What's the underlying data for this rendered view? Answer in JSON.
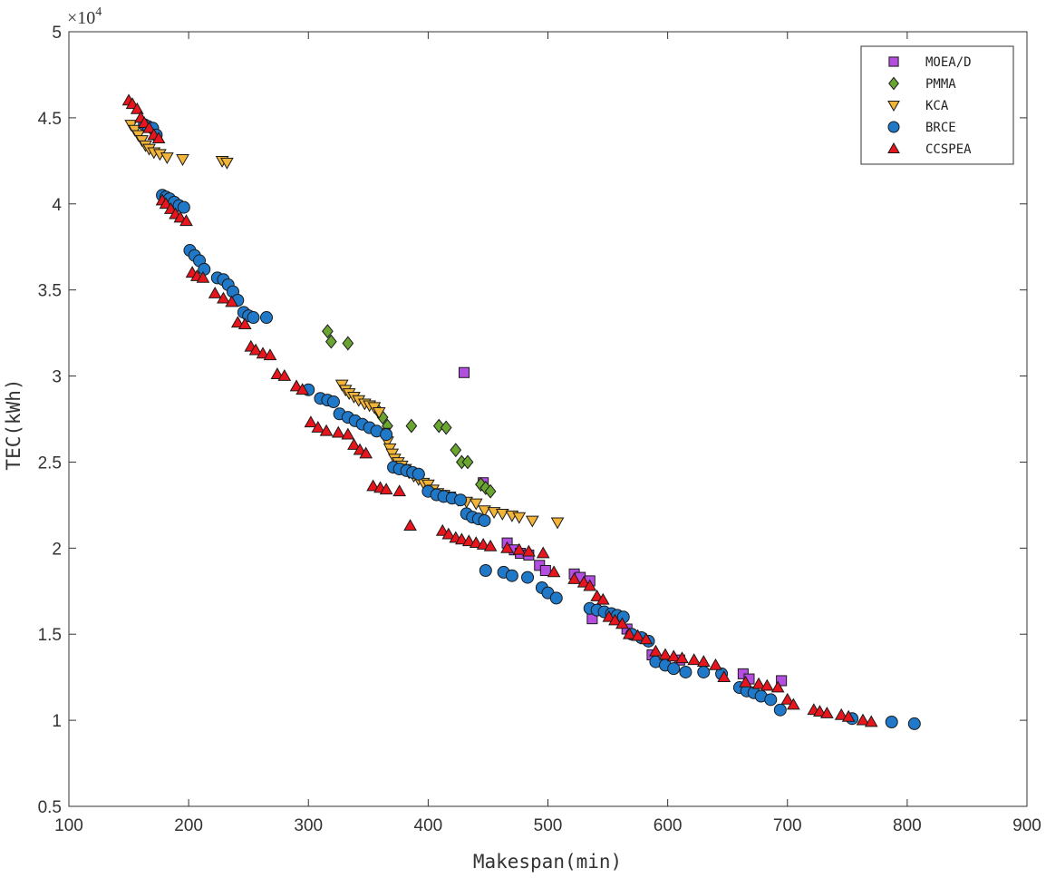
{
  "chart_data": {
    "type": "scatter",
    "title": "",
    "xlabel": "Makespan(min)",
    "ylabel": "TEC(kWh)",
    "xlim": [
      100,
      900
    ],
    "ylim": [
      0.5,
      5
    ],
    "y_multiplier_label": "×10",
    "y_multiplier_exponent": "4",
    "x_ticks": [
      100,
      200,
      300,
      400,
      500,
      600,
      700,
      800,
      900
    ],
    "x_tick_labels": [
      "100",
      "200",
      "300",
      "400",
      "500",
      "600",
      "700",
      "800",
      "900"
    ],
    "y_ticks": [
      0.5,
      1,
      1.5,
      2,
      2.5,
      3,
      3.5,
      4,
      4.5,
      5
    ],
    "y_tick_labels": [
      "0.5",
      "1",
      "1.5",
      "2",
      "2.5",
      "3",
      "3.5",
      "4",
      "4.5",
      "5"
    ],
    "grid": false,
    "legend_position": "top-right",
    "series": [
      {
        "name": "MOEA/D",
        "marker": "square",
        "color": "#b44ee0",
        "x": [
          430,
          446,
          466,
          472,
          477,
          484,
          493,
          498,
          522,
          527,
          535,
          537,
          566,
          587,
          610,
          663,
          668,
          695
        ],
        "y": [
          3.02,
          2.38,
          2.03,
          1.99,
          1.97,
          1.96,
          1.9,
          1.87,
          1.85,
          1.83,
          1.81,
          1.59,
          1.53,
          1.38,
          1.35,
          1.27,
          1.24,
          1.23
        ]
      },
      {
        "name": "PMMA",
        "marker": "diamond",
        "color": "#6aa532",
        "x": [
          316,
          319,
          333,
          358,
          362,
          366,
          386,
          409,
          415,
          423,
          428,
          433,
          444,
          448,
          452
        ],
        "y": [
          3.26,
          3.2,
          3.19,
          2.8,
          2.76,
          2.71,
          2.71,
          2.71,
          2.7,
          2.57,
          2.5,
          2.5,
          2.37,
          2.35,
          2.33
        ]
      },
      {
        "name": "KCA",
        "marker": "triangle-down",
        "color": "#f2b53a",
        "x": [
          152,
          155,
          158,
          161,
          164,
          167,
          171,
          176,
          182,
          195,
          228,
          232,
          328,
          331,
          334,
          338,
          342,
          347,
          351,
          355,
          359,
          363,
          366,
          368,
          370,
          372,
          375,
          378,
          381,
          384,
          388,
          392,
          396,
          400,
          404,
          408,
          413,
          418,
          425,
          432,
          440,
          447,
          455,
          462,
          470,
          476,
          487,
          508
        ],
        "y": [
          4.46,
          4.43,
          4.4,
          4.37,
          4.34,
          4.32,
          4.3,
          4.29,
          4.27,
          4.26,
          4.25,
          4.24,
          2.95,
          2.92,
          2.9,
          2.88,
          2.86,
          2.84,
          2.83,
          2.82,
          2.79,
          2.67,
          2.62,
          2.58,
          2.55,
          2.52,
          2.5,
          2.48,
          2.46,
          2.44,
          2.42,
          2.4,
          2.38,
          2.37,
          2.34,
          2.32,
          2.31,
          2.3,
          2.28,
          2.27,
          2.26,
          2.22,
          2.21,
          2.2,
          2.19,
          2.18,
          2.16,
          2.15
        ]
      },
      {
        "name": "BRCE",
        "marker": "circle",
        "color": "#1f78c8",
        "x": [
          163,
          166,
          170,
          173,
          178,
          181,
          184,
          188,
          192,
          196,
          201,
          205,
          209,
          213,
          224,
          229,
          233,
          237,
          241,
          246,
          250,
          254,
          265,
          300,
          310,
          316,
          321,
          326,
          333,
          339,
          345,
          351,
          357,
          365,
          371,
          376,
          382,
          387,
          392,
          400,
          407,
          413,
          420,
          427,
          432,
          437,
          442,
          447,
          448,
          463,
          470,
          483,
          495,
          500,
          507,
          535,
          541,
          547,
          553,
          558,
          563,
          570,
          578,
          584,
          590,
          598,
          605,
          615,
          630,
          645,
          660,
          666,
          672,
          678,
          686,
          694,
          754,
          787,
          806
        ],
        "y": [
          4.46,
          4.45,
          4.44,
          4.4,
          4.05,
          4.04,
          4.03,
          4.01,
          3.99,
          3.98,
          3.73,
          3.7,
          3.67,
          3.62,
          3.57,
          3.56,
          3.53,
          3.49,
          3.44,
          3.37,
          3.35,
          3.34,
          3.34,
          2.92,
          2.87,
          2.86,
          2.85,
          2.78,
          2.76,
          2.74,
          2.72,
          2.7,
          2.68,
          2.66,
          2.47,
          2.46,
          2.45,
          2.44,
          2.43,
          2.33,
          2.31,
          2.3,
          2.29,
          2.28,
          2.2,
          2.18,
          2.17,
          2.16,
          1.87,
          1.86,
          1.84,
          1.83,
          1.77,
          1.74,
          1.71,
          1.65,
          1.64,
          1.63,
          1.62,
          1.61,
          1.6,
          1.5,
          1.48,
          1.46,
          1.34,
          1.32,
          1.3,
          1.28,
          1.28,
          1.27,
          1.19,
          1.17,
          1.16,
          1.14,
          1.12,
          1.06,
          1.01,
          0.99,
          0.98
        ]
      },
      {
        "name": "CCSPEA",
        "marker": "triangle-up",
        "color": "#e8161c",
        "x": [
          150,
          153,
          157,
          160,
          163,
          167,
          171,
          175,
          178,
          181,
          185,
          189,
          193,
          198,
          203,
          207,
          212,
          222,
          229,
          236,
          241,
          247,
          252,
          256,
          262,
          268,
          274,
          280,
          290,
          295,
          302,
          308,
          315,
          325,
          333,
          338,
          343,
          348,
          354,
          360,
          365,
          376,
          385,
          412,
          417,
          423,
          428,
          434,
          440,
          446,
          452,
          466,
          476,
          484,
          496,
          505,
          522,
          530,
          535,
          541,
          546,
          551,
          556,
          562,
          568,
          575,
          582,
          590,
          598,
          605,
          612,
          622,
          630,
          640,
          647,
          665,
          676,
          683,
          692,
          700,
          705,
          722,
          727,
          733,
          745,
          751,
          763,
          770
        ],
        "y": [
          4.6,
          4.58,
          4.55,
          4.5,
          4.47,
          4.44,
          4.4,
          4.38,
          4.02,
          4.0,
          3.97,
          3.94,
          3.92,
          3.9,
          3.6,
          3.58,
          3.57,
          3.48,
          3.45,
          3.43,
          3.31,
          3.3,
          3.17,
          3.15,
          3.13,
          3.12,
          3.01,
          3.0,
          2.94,
          2.92,
          2.73,
          2.7,
          2.68,
          2.67,
          2.66,
          2.6,
          2.57,
          2.55,
          2.36,
          2.35,
          2.34,
          2.33,
          2.13,
          2.1,
          2.08,
          2.06,
          2.05,
          2.04,
          2.03,
          2.02,
          2.01,
          2.0,
          1.99,
          1.98,
          1.97,
          1.86,
          1.82,
          1.8,
          1.78,
          1.72,
          1.7,
          1.6,
          1.58,
          1.56,
          1.5,
          1.49,
          1.47,
          1.4,
          1.38,
          1.37,
          1.36,
          1.35,
          1.34,
          1.32,
          1.25,
          1.22,
          1.21,
          1.2,
          1.19,
          1.12,
          1.09,
          1.06,
          1.05,
          1.04,
          1.03,
          1.02,
          1.0,
          0.99
        ]
      }
    ]
  }
}
